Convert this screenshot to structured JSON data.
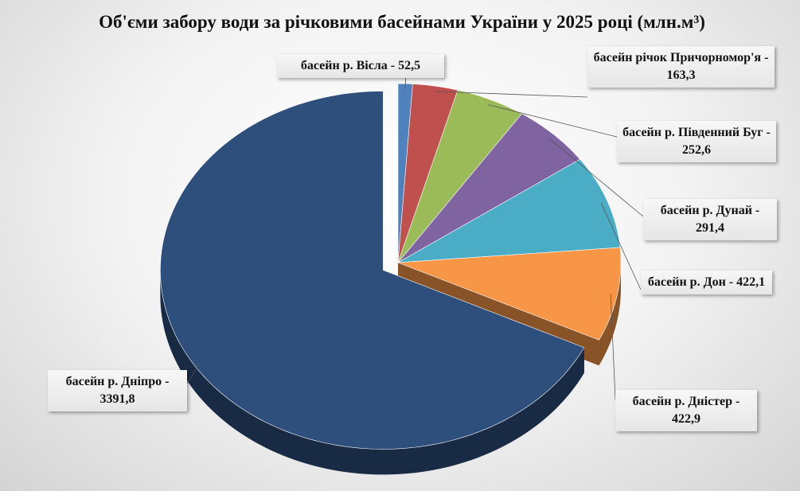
{
  "chart_data": {
    "type": "pie",
    "title": "Об'єми забору води за річковими басейнами України у 2025 році (млн.м³)",
    "categories": [
      "басейн р. Вісла -",
      "басейн річок Причорномор'я -",
      "басейн р. Південний Буг -",
      "басейн р. Дунай -",
      "басейн р. Дон -",
      "басейн р. Дністер -",
      "басейн р. Дніпро -"
    ],
    "values": [
      52.5,
      163.3,
      252.6,
      291.4,
      422.1,
      422.9,
      3391.8
    ],
    "value_labels": [
      "52,5",
      "163,3",
      "252,6",
      "291,4",
      "422,1",
      "422,9",
      "3391,8"
    ],
    "colors": [
      "#4f81bd",
      "#c0504d",
      "#9bbb59",
      "#8064a2",
      "#4bacc6",
      "#f79646",
      "#2e4f7c"
    ],
    "exploded": "басейн р. Дніпро -"
  }
}
